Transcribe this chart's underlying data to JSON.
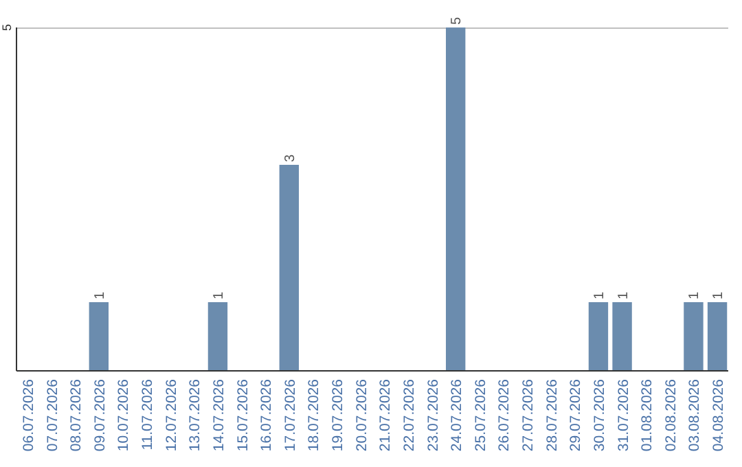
{
  "chart_data": {
    "type": "bar",
    "categories": [
      "06.07.2026",
      "07.07.2026",
      "08.07.2026",
      "09.07.2026",
      "10.07.2026",
      "11.07.2026",
      "12.07.2026",
      "13.07.2026",
      "14.07.2026",
      "15.07.2026",
      "16.07.2026",
      "17.07.2026",
      "18.07.2026",
      "19.07.2026",
      "20.07.2026",
      "21.07.2026",
      "22.07.2026",
      "23.07.2026",
      "24.07.2026",
      "25.07.2026",
      "26.07.2026",
      "27.07.2026",
      "28.07.2026",
      "29.07.2026",
      "30.07.2026",
      "31.07.2026",
      "01.08.2026",
      "02.08.2026",
      "03.08.2026",
      "04.08.2026"
    ],
    "values": [
      0,
      0,
      0,
      1,
      0,
      0,
      0,
      0,
      1,
      0,
      0,
      3,
      0,
      0,
      0,
      0,
      0,
      0,
      5,
      0,
      0,
      0,
      0,
      0,
      1,
      1,
      0,
      0,
      1,
      1
    ],
    "value_labels": [
      null,
      null,
      null,
      "1",
      null,
      null,
      null,
      null,
      "1",
      null,
      null,
      "3",
      null,
      null,
      null,
      null,
      null,
      null,
      "5",
      null,
      null,
      null,
      null,
      null,
      "1",
      "1",
      null,
      null,
      "1",
      "1"
    ],
    "color": "#6b8cae",
    "ylim": [
      0,
      5
    ],
    "yticks": [
      5
    ]
  }
}
